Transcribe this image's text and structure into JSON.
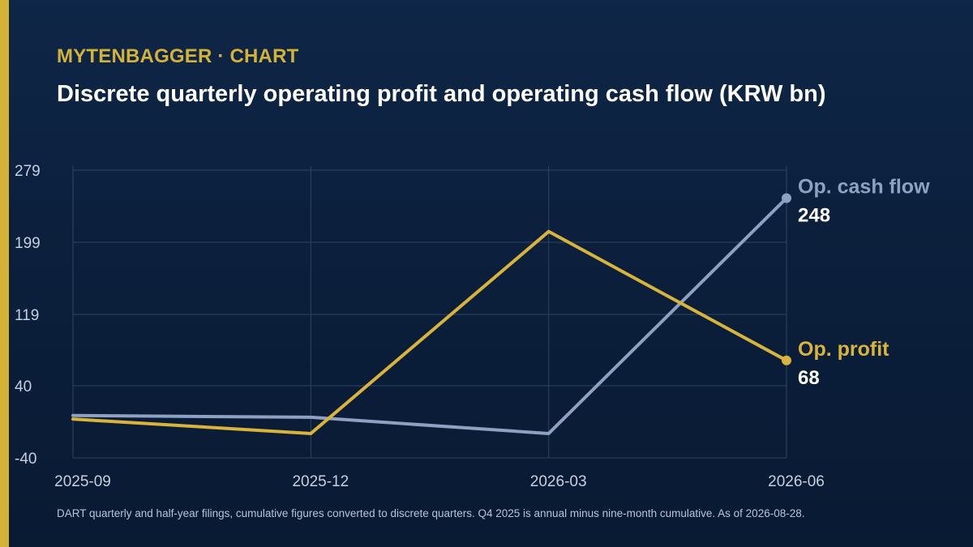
{
  "brand": "MYTENBAGGER · CHART",
  "title": "Discrete quarterly operating profit and operating cash flow (KRW bn)",
  "footnote": "DART quarterly and half-year filings, cumulative figures converted to discrete quarters. Q4 2025 is annual minus nine-month cumulative. As of 2026-08-28.",
  "colors": {
    "accent": "#d4b238",
    "op_profit": "#d9b43c",
    "op_cash_flow": "#8ea1c2",
    "grid": "#2b4566",
    "text": "#ffffff",
    "muted": "#c6d0de"
  },
  "chart_data": {
    "type": "line",
    "x": [
      "2025-09",
      "2025-12",
      "2026-03",
      "2026-06"
    ],
    "series": [
      {
        "name": "Op. cash flow",
        "values": [
          7,
          5,
          -13,
          248
        ],
        "end_label": "248",
        "color_key": "op_cash_flow"
      },
      {
        "name": "Op. profit",
        "values": [
          3,
          -13,
          211,
          68
        ],
        "end_label": "68",
        "color_key": "op_profit"
      }
    ],
    "yticks": [
      -40,
      40,
      119,
      199,
      279
    ],
    "ylim": [
      -40,
      279
    ],
    "grid": true,
    "legend": "end-of-line labels"
  }
}
